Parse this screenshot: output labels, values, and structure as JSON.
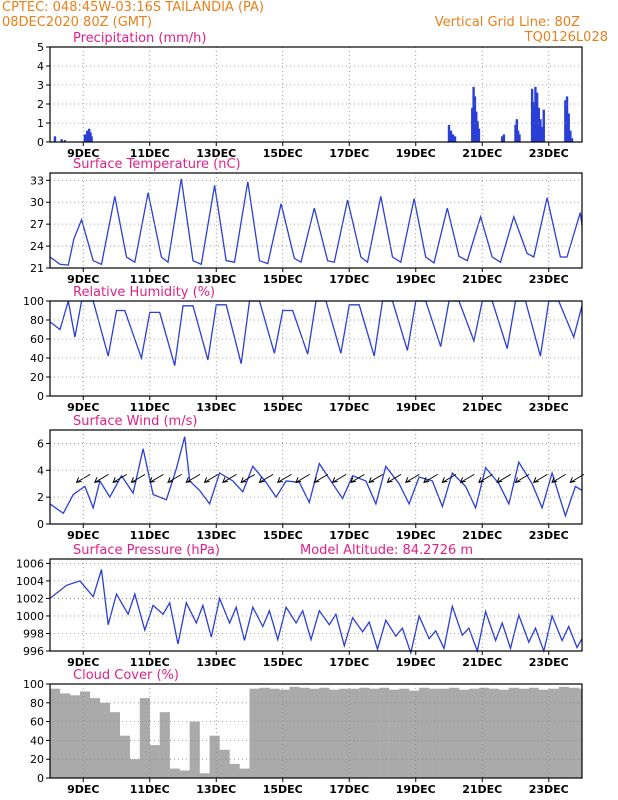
{
  "header": {
    "station_line": "CPTEC:    048:45W-03:16S   TAILANDIA (PA)",
    "run_line": "08DEC2020 80Z (GMT)",
    "grid_line": "Vertical Grid Line: 80Z",
    "code": "TQ0126L028"
  },
  "x_ticks": [
    "9DEC",
    "11DEC",
    "13DEC",
    "15DEC",
    "17DEC",
    "19DEC",
    "21DEC",
    "23DEC"
  ],
  "colors": {
    "header": "#e8801a",
    "title": "#e0208a",
    "line": "#2a3fd6",
    "cloud": "#aaaaaa",
    "arrow": "#000000"
  },
  "chart_data": [
    {
      "id": "precipitation",
      "type": "bar",
      "title": "Precipitation (mm/h)",
      "ylim": [
        0,
        5
      ],
      "yticks": [
        0,
        1,
        2,
        3,
        4,
        5
      ],
      "x_unit": "days since 08DEC2020 00Z",
      "x": [
        0.15,
        0.35,
        0.45,
        1.05,
        1.12,
        1.18,
        1.22,
        1.25,
        12.0,
        12.06,
        12.12,
        12.18,
        12.7,
        12.74,
        12.78,
        12.82,
        12.86,
        12.9,
        13.6,
        13.65,
        14.0,
        14.04,
        14.08,
        14.12,
        14.5,
        14.55,
        14.6,
        14.65,
        14.7,
        14.75,
        14.8,
        14.85,
        15.5,
        15.55,
        15.6,
        15.65,
        15.7
      ],
      "values": [
        0.3,
        0.15,
        0.1,
        0.4,
        0.6,
        0.7,
        0.5,
        0.3,
        0.9,
        0.6,
        0.4,
        0.3,
        1.8,
        2.9,
        2.4,
        1.6,
        1.1,
        0.7,
        0.3,
        0.4,
        0.9,
        1.2,
        0.6,
        0.4,
        2.8,
        2.1,
        2.9,
        2.6,
        1.8,
        1.2,
        0.8,
        1.7,
        2.2,
        2.4,
        1.5,
        0.6,
        0.2
      ]
    },
    {
      "id": "temperature",
      "type": "line",
      "title": "Surface Temperature (nC)",
      "ylim": [
        21,
        34
      ],
      "yticks": [
        21,
        24,
        27,
        30,
        33
      ],
      "x": [
        0,
        0.3,
        0.55,
        0.72,
        0.95,
        1.3,
        1.55,
        1.95,
        2.3,
        2.55,
        2.95,
        3.35,
        3.55,
        3.95,
        4.3,
        4.55,
        4.95,
        5.3,
        5.55,
        5.95,
        6.3,
        6.55,
        6.95,
        7.35,
        7.55,
        7.95,
        8.35,
        8.55,
        8.95,
        9.35,
        9.55,
        9.95,
        10.3,
        10.55,
        10.95,
        11.3,
        11.55,
        11.95,
        12.3,
        12.55,
        12.95,
        13.3,
        13.55,
        13.95,
        14.35,
        14.55,
        14.95,
        15.35,
        15.55,
        15.95,
        16
      ],
      "values": [
        22.5,
        21.5,
        21.4,
        25,
        27.6,
        22,
        21.5,
        30.8,
        22.5,
        21.8,
        31.3,
        22.5,
        21.8,
        33.2,
        22,
        21.5,
        32.3,
        22,
        21.8,
        32.8,
        22,
        21.6,
        29.8,
        22.3,
        21.8,
        29.2,
        22,
        21.8,
        30.3,
        22.5,
        21.8,
        30.8,
        22.5,
        21.8,
        30.5,
        22.5,
        21.7,
        29.2,
        22.6,
        22,
        28,
        22.5,
        21.8,
        28,
        23,
        22.5,
        30.6,
        22.5,
        22.5,
        28.6,
        26.8
      ]
    },
    {
      "id": "humidity",
      "type": "line",
      "title": "Relative Humidity (%)",
      "ylim": [
        0,
        100
      ],
      "yticks": [
        0,
        20,
        40,
        60,
        80,
        100
      ],
      "x": [
        0,
        0.3,
        0.55,
        0.75,
        0.95,
        1.3,
        1.75,
        2.0,
        2.25,
        2.75,
        3.0,
        3.3,
        3.75,
        4.0,
        4.3,
        4.75,
        5.0,
        5.3,
        5.75,
        6.0,
        6.3,
        6.75,
        7.0,
        7.3,
        7.75,
        8.0,
        8.3,
        8.75,
        9.0,
        9.3,
        9.75,
        10.0,
        10.3,
        10.75,
        11.0,
        11.3,
        11.75,
        12.0,
        12.3,
        12.75,
        13.0,
        13.3,
        13.75,
        14.0,
        14.3,
        14.75,
        15.0,
        15.3,
        15.75,
        16
      ],
      "values": [
        78,
        70,
        100,
        62,
        100,
        100,
        42,
        90,
        90,
        40,
        88,
        88,
        32,
        95,
        95,
        38,
        96,
        96,
        34,
        100,
        100,
        45,
        90,
        90,
        44,
        100,
        100,
        45,
        96,
        96,
        42,
        100,
        100,
        48,
        100,
        100,
        52,
        100,
        100,
        58,
        100,
        100,
        50,
        100,
        100,
        42,
        100,
        100,
        62,
        95
      ]
    },
    {
      "id": "wind",
      "type": "line",
      "title": "Surface Wind (m/s)",
      "ylim": [
        0,
        7
      ],
      "yticks": [
        0,
        2,
        4,
        6
      ],
      "x": [
        0,
        0.4,
        0.7,
        1.05,
        1.3,
        1.5,
        1.8,
        2.15,
        2.5,
        2.8,
        3.1,
        3.5,
        3.8,
        4.05,
        4.2,
        4.5,
        4.8,
        5.1,
        5.5,
        5.8,
        6.1,
        6.5,
        6.8,
        7.1,
        7.5,
        7.8,
        8.1,
        8.5,
        8.8,
        9.1,
        9.5,
        9.8,
        10.1,
        10.5,
        10.8,
        11.1,
        11.5,
        11.8,
        12.1,
        12.5,
        12.8,
        13.1,
        13.5,
        13.8,
        14.1,
        14.5,
        14.8,
        15.1,
        15.5,
        15.8,
        16
      ],
      "values": [
        1.5,
        0.8,
        2.2,
        2.8,
        1.2,
        3.2,
        2.0,
        3.6,
        2.3,
        5.6,
        2.2,
        1.8,
        4.1,
        6.5,
        3.2,
        2.5,
        1.5,
        3.8,
        3.2,
        2.4,
        4.3,
        3.1,
        2.0,
        3.2,
        3.1,
        1.6,
        4.5,
        3.0,
        1.9,
        3.6,
        3.2,
        1.5,
        4.3,
        3.0,
        1.5,
        3.5,
        3.2,
        1.3,
        3.8,
        2.8,
        1.2,
        4.2,
        3.0,
        1.5,
        4.6,
        3.0,
        1.2,
        3.8,
        0.6,
        2.8,
        2.5
      ]
    },
    {
      "id": "pressure",
      "type": "line",
      "title": "Surface Pressure (hPa)",
      "annotation": "Model Altitude: 84.2726 m",
      "ylim": [
        996,
        1006.5
      ],
      "yticks": [
        996,
        998,
        1000,
        1002,
        1004,
        1006
      ],
      "x": [
        0,
        0.5,
        0.9,
        1.3,
        1.55,
        1.75,
        2.0,
        2.35,
        2.55,
        2.85,
        3.1,
        3.4,
        3.6,
        3.85,
        4.1,
        4.4,
        4.6,
        4.85,
        5.1,
        5.4,
        5.6,
        5.85,
        6.1,
        6.4,
        6.6,
        6.85,
        7.1,
        7.4,
        7.6,
        7.85,
        8.1,
        8.4,
        8.6,
        8.85,
        9.1,
        9.4,
        9.6,
        9.85,
        10.1,
        10.4,
        10.6,
        10.85,
        11.1,
        11.4,
        11.6,
        11.85,
        12.1,
        12.4,
        12.6,
        12.85,
        13.1,
        13.4,
        13.6,
        13.85,
        14.1,
        14.4,
        14.6,
        14.85,
        15.1,
        15.4,
        15.6,
        15.85,
        16
      ],
      "values": [
        1002,
        1003.5,
        1004,
        1002.2,
        1005.3,
        999,
        1002.5,
        1000.2,
        1002.5,
        998.4,
        1001.2,
        1000.2,
        1001.5,
        996.8,
        1001.5,
        999.2,
        1001.2,
        997.6,
        1002,
        999.2,
        1001,
        997.2,
        1001,
        998.8,
        1000.6,
        997.3,
        1001,
        999.2,
        1000.6,
        997.3,
        1000.6,
        999,
        1000.2,
        996.6,
        999.8,
        998.2,
        999.3,
        996.2,
        999.5,
        997.7,
        998.6,
        995.8,
        1000,
        997.4,
        998.3,
        996.3,
        1001.1,
        997.8,
        998.6,
        996,
        1000.5,
        997.2,
        999.2,
        996.3,
        1000.1,
        997,
        998.6,
        996,
        1000,
        997.2,
        998.8,
        996.4,
        997.4
      ]
    },
    {
      "id": "cloud",
      "type": "area",
      "title": "Cloud Cover (%)",
      "ylim": [
        0,
        100
      ],
      "yticks": [
        0,
        20,
        40,
        60,
        80,
        100
      ],
      "x": [
        0,
        0.3,
        0.6,
        0.9,
        1.2,
        1.5,
        1.8,
        2.1,
        2.4,
        2.7,
        3.0,
        3.3,
        3.6,
        3.9,
        4.2,
        4.5,
        4.8,
        5.1,
        5.4,
        5.7,
        6.0,
        6.3,
        6.6,
        6.9,
        7.2,
        7.5,
        7.8,
        8.1,
        8.4,
        8.7,
        9.0,
        9.3,
        9.6,
        9.9,
        10.2,
        10.5,
        10.8,
        11.1,
        11.4,
        11.7,
        12.0,
        12.3,
        12.6,
        12.9,
        13.2,
        13.5,
        13.8,
        14.1,
        14.4,
        14.7,
        15.0,
        15.3,
        15.6,
        15.9,
        16
      ],
      "values": [
        95,
        90,
        88,
        92,
        85,
        80,
        70,
        45,
        20,
        85,
        35,
        70,
        10,
        8,
        60,
        5,
        45,
        30,
        15,
        10,
        95,
        96,
        95,
        94,
        97,
        96,
        95,
        96,
        94,
        95,
        95,
        96,
        95,
        96,
        94,
        95,
        93,
        96,
        95,
        95,
        96,
        94,
        95,
        96,
        95,
        94,
        96,
        95,
        96,
        94,
        95,
        97,
        96,
        95,
        94
      ]
    }
  ]
}
